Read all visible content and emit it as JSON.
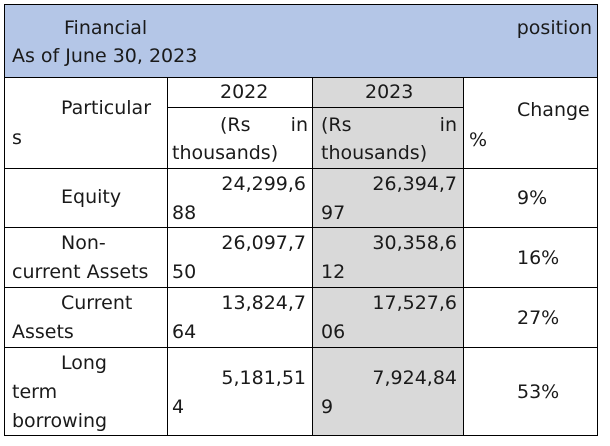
{
  "title": {
    "word1": "Financial",
    "word2": "position",
    "line2": "As of June 30, 2023"
  },
  "header": {
    "particulars_a": "Particular",
    "particulars_b": "s",
    "year_2022": "2022",
    "year_2023": "2023",
    "unit_open": "(Rs",
    "unit_in": "in",
    "unit_thousands": "thousands)",
    "pct": "%",
    "change": "Change"
  },
  "rows": [
    {
      "label": [
        "Equity"
      ],
      "v2022": [
        "24,299,6",
        "88"
      ],
      "v2023": [
        "26,394,7",
        "97"
      ],
      "change": "9%"
    },
    {
      "label": [
        "Non-",
        "current Assets"
      ],
      "v2022": [
        "26,097,7",
        "50"
      ],
      "v2023": [
        "30,358,6",
        "12"
      ],
      "change": "16%"
    },
    {
      "label": [
        "Current",
        "Assets"
      ],
      "v2022": [
        "13,824,7",
        "64"
      ],
      "v2023": [
        "17,527,6",
        "06"
      ],
      "change": "27%"
    },
    {
      "label": [
        "Long",
        "term",
        "borrowing"
      ],
      "v2022": [
        "5,181,51",
        "4"
      ],
      "v2023": [
        "7,924,84",
        "9"
      ],
      "change": "53%"
    }
  ],
  "colors": {
    "title_bg": "#b4c6e7",
    "shade_bg": "#d9d9d9"
  }
}
